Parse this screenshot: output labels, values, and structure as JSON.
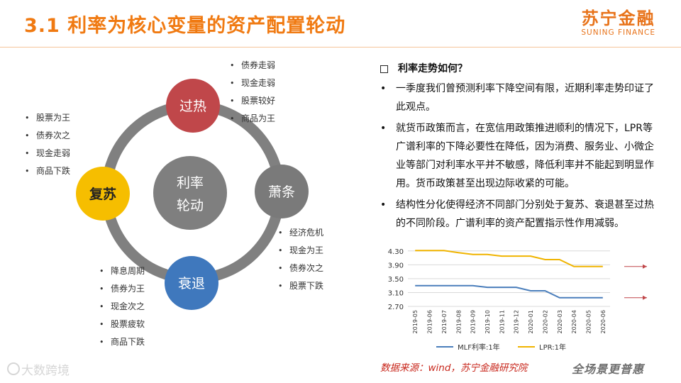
{
  "header": {
    "title": "3.1 利率为核心变量的资产配置轮动",
    "brand_cn": "苏宁金融",
    "brand_en": "SUNING FINANCE"
  },
  "cycle": {
    "center": [
      "利率",
      "轮动"
    ],
    "phases": {
      "overheat": {
        "label": "过热",
        "color": "#c0474a",
        "bullets": [
          "债券走弱",
          "现金走弱",
          "股票较好",
          "商品为王"
        ]
      },
      "stagflation": {
        "label": "萧条",
        "color": "#7a7a7a",
        "bullets": [
          "经济危机",
          "现金为王",
          "债券次之",
          "股票下跌"
        ]
      },
      "recession": {
        "label": "衰退",
        "color": "#3f78bd",
        "bullets": [
          "降息周期",
          "债券为王",
          "现金次之",
          "股票疲软",
          "商品下跌"
        ]
      },
      "recovery": {
        "label": "复苏",
        "color": "#f6be00",
        "bullets": [
          "股票为王",
          "债券次之",
          "现金走弱",
          "商品下跌"
        ]
      }
    },
    "ring_color": "#808080",
    "center_color": "#7f7f7f"
  },
  "text_panel": {
    "question": "利率走势如何？",
    "paragraphs": [
      "一季度我们曾预测利率下降空间有限，近期利率走势印证了此观点。",
      "就货币政策而言，在宽信用政策推进顺利的情况下，LPR等广谱利率的下降必要性在降低，因为消费、服务业、小微企业等部门对利率水平并不敏感，降低利率并不能起到明显作用。货币政策甚至出现边际收紧的可能。",
      "结构性分化使得经济不同部门分别处于复苏、衰退甚至过热的不同阶段。广谱利率的资产配置指示性作用减弱。"
    ]
  },
  "chart_data": {
    "type": "line",
    "x": [
      "2019-05",
      "2019-06",
      "2019-07",
      "2019-08",
      "2019-09",
      "2019-10",
      "2019-11",
      "2019-12",
      "2020-01",
      "2020-02",
      "2020-03",
      "2020-04",
      "2020-05",
      "2020-06"
    ],
    "series": [
      {
        "name": "MLF利率:1年",
        "color": "#4a7ebb",
        "values": [
          3.3,
          3.3,
          3.3,
          3.3,
          3.3,
          3.25,
          3.25,
          3.25,
          3.15,
          3.15,
          2.95,
          2.95,
          2.95,
          2.95
        ]
      },
      {
        "name": "LPR:1年",
        "color": "#f0b400",
        "values": [
          4.31,
          4.31,
          4.31,
          4.25,
          4.2,
          4.2,
          4.15,
          4.15,
          4.15,
          4.05,
          4.05,
          3.85,
          3.85,
          3.85
        ]
      }
    ],
    "yticks": [
      "4.30",
      "3.90",
      "3.50",
      "3.10",
      "2.70"
    ],
    "ylim": [
      2.7,
      4.5
    ],
    "arrow_color": "#c0474a",
    "grid": true,
    "legend": "bottom"
  },
  "footer": {
    "source": "数据来源：wind，苏宁金融研究院",
    "slogan": "全场景更普惠",
    "watermark": "大数跨境"
  }
}
